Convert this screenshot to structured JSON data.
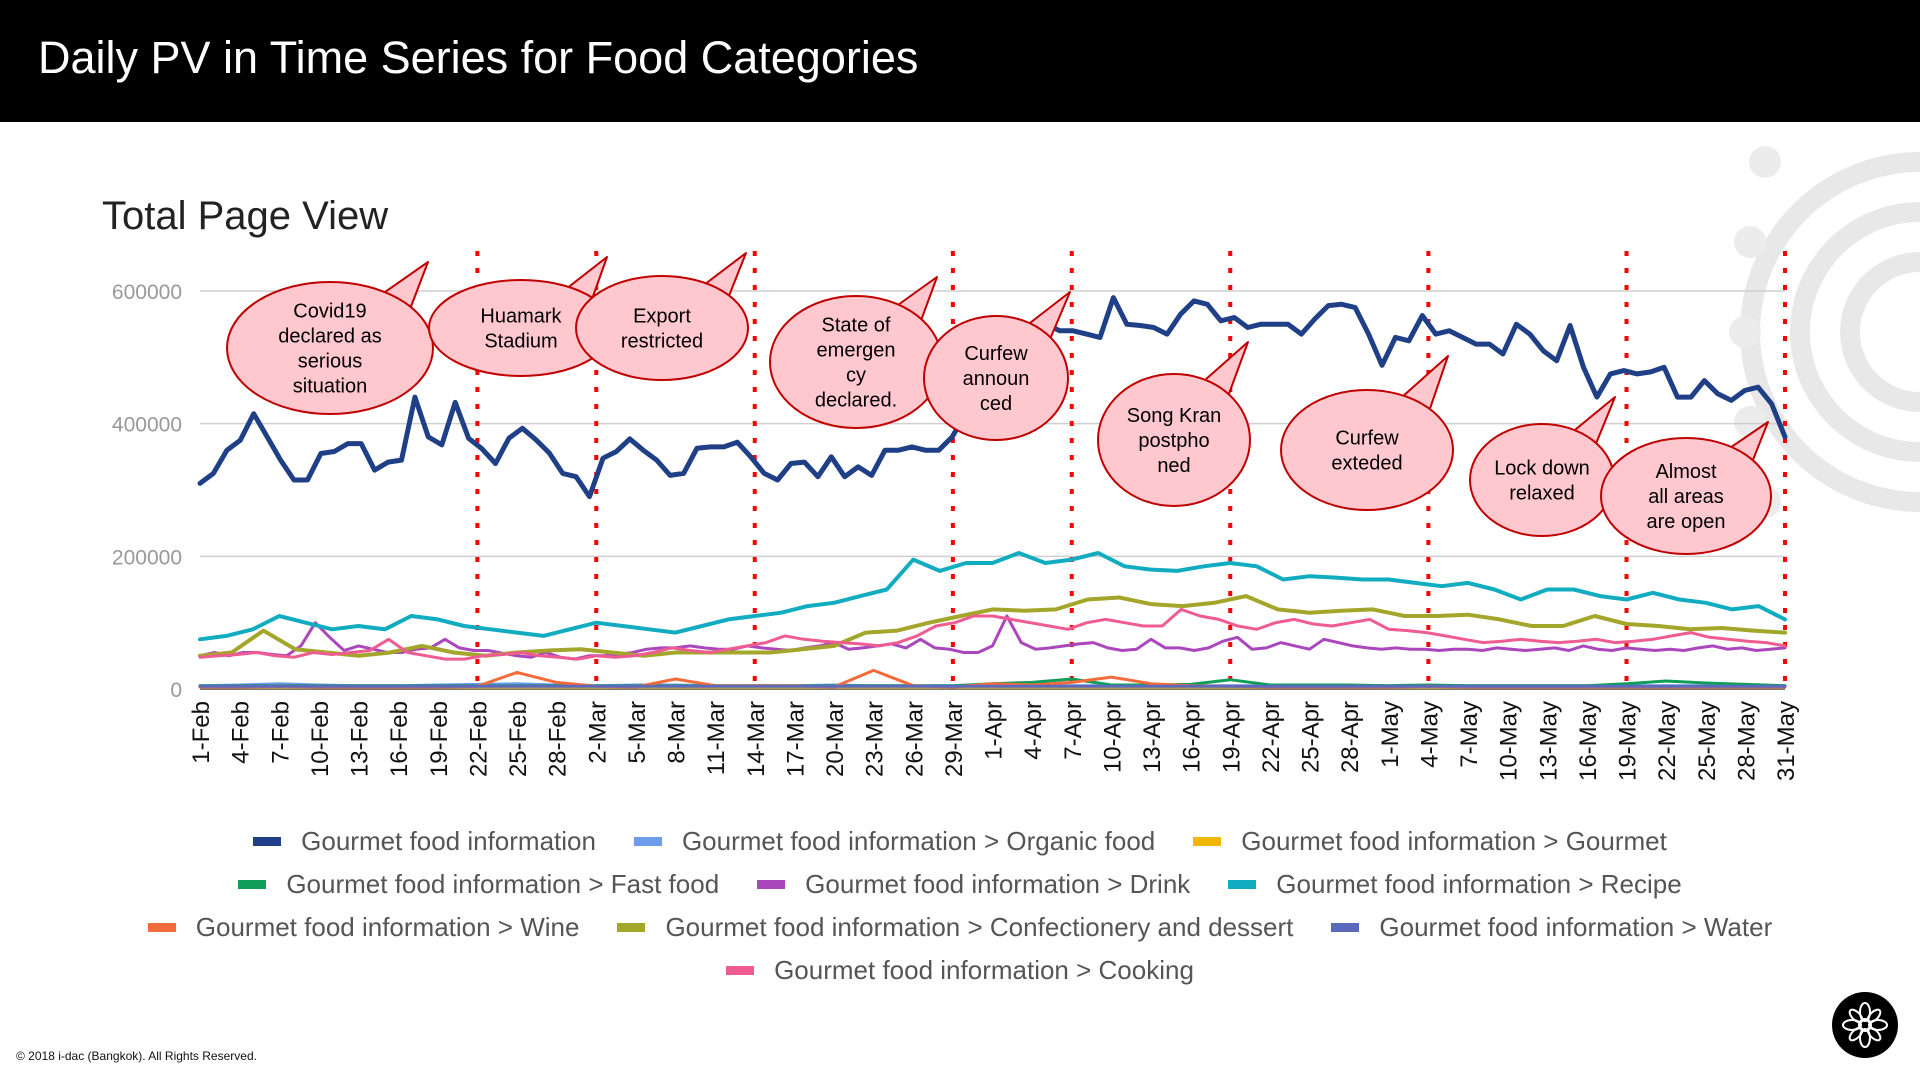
{
  "slide": {
    "title": "Daily PV in Time Series for Food Categories",
    "copyright": "© 2018 i-dac (Bangkok). All Rights Reserved."
  },
  "chart_data": {
    "type": "line",
    "title": "Total Page View",
    "ylim": [
      0,
      600000
    ],
    "yticks": [
      "0",
      "200000",
      "400000",
      "600000"
    ],
    "grid": true,
    "legend_position": "bottom",
    "x_labels": [
      "1-Feb",
      "4-Feb",
      "7-Feb",
      "10-Feb",
      "13-Feb",
      "16-Feb",
      "19-Feb",
      "22-Feb",
      "25-Feb",
      "28-Feb",
      "2-Mar",
      "5-Mar",
      "8-Mar",
      "11-Mar",
      "14-Mar",
      "17-Mar",
      "20-Mar",
      "23-Mar",
      "26-Mar",
      "29-Mar",
      "1-Apr",
      "4-Apr",
      "7-Apr",
      "10-Apr",
      "13-Apr",
      "16-Apr",
      "19-Apr",
      "22-Apr",
      "25-Apr",
      "28-Apr",
      "1-May",
      "4-May",
      "7-May",
      "10-May",
      "13-May",
      "16-May",
      "19-May",
      "22-May",
      "25-May",
      "28-May",
      "31-May"
    ],
    "series": [
      {
        "name": "Gourmet food information",
        "color": "#1F3F86",
        "width": 5,
        "values": [
          310000,
          325000,
          360000,
          375000,
          415000,
          380000,
          345000,
          315000,
          315000,
          355000,
          358000,
          370000,
          370000,
          330000,
          342000,
          345000,
          440000,
          380000,
          368000,
          432000,
          378000,
          362000,
          340000,
          378000,
          393000,
          376000,
          356000,
          325000,
          320000,
          290000,
          348000,
          358000,
          377000,
          360000,
          345000,
          322000,
          325000,
          363000,
          365000,
          365000,
          372000,
          350000,
          325000,
          315000,
          340000,
          342000,
          320000,
          350000,
          320000,
          335000,
          322000,
          360000,
          360000,
          365000,
          360000,
          360000,
          380000,
          415000,
          430000,
          455000,
          475000,
          495000,
          520000,
          550000,
          540000,
          540000,
          535000,
          530000,
          590000,
          550000,
          548000,
          545000,
          535000,
          565000,
          585000,
          580000,
          555000,
          560000,
          545000,
          550000,
          550000,
          550000,
          535000,
          558000,
          578000,
          580000,
          575000,
          535000,
          488000,
          530000,
          525000,
          563000,
          535000,
          540000,
          530000,
          520000,
          520000,
          505000,
          550000,
          535000,
          510000,
          495000,
          548000,
          485000,
          440000,
          475000,
          480000,
          475000,
          478000,
          485000,
          440000,
          440000,
          465000,
          445000,
          435000,
          450000,
          455000,
          430000,
          380000
        ]
      },
      {
        "name": "Gourmet food information > Organic food",
        "color": "#6D9EEB",
        "width": 3,
        "values": [
          5000,
          6000,
          8000,
          6000,
          5000,
          5000,
          6000,
          7000,
          8000,
          6000,
          5000,
          6000,
          6000,
          5000,
          5000,
          5000,
          6000,
          5000,
          5000,
          5000,
          5000,
          5000,
          5000,
          5000,
          5000,
          5000,
          5000,
          5000,
          5000,
          5000,
          5000,
          5000,
          5000,
          5000,
          5000,
          5000,
          5000,
          5000,
          5000,
          5000,
          5000
        ]
      },
      {
        "name": "Gourmet food information > Gourmet",
        "color": "#F1B705",
        "width": 3,
        "values": [
          3000,
          3000,
          3000,
          3000,
          3000,
          3000,
          3000,
          3000,
          3000,
          3000,
          3000,
          3000,
          3000,
          3000,
          3000,
          3000,
          3000,
          3000,
          3000,
          3000,
          3000,
          3000,
          3000,
          3000,
          3000,
          3000,
          3000,
          3000,
          3000,
          3000,
          3000,
          3000,
          3000,
          3000,
          3000,
          3000,
          3000,
          3000,
          3000,
          3000,
          3000
        ]
      },
      {
        "name": "Gourmet food information > Fast food",
        "color": "#0F9D58",
        "width": 3,
        "values": [
          5000,
          5000,
          5000,
          5000,
          5000,
          5000,
          5000,
          5000,
          5000,
          5000,
          5000,
          5000,
          5000,
          5000,
          5000,
          5000,
          5000,
          5000,
          5000,
          5000,
          8000,
          10000,
          15000,
          6000,
          6000,
          7000,
          14000,
          6000,
          6000,
          6000,
          5000,
          6000,
          5000,
          5000,
          5000,
          5000,
          8000,
          12000,
          9000,
          7000,
          5000
        ]
      },
      {
        "name": "Gourmet food information > Drink",
        "color": "#AB47BC",
        "width": 3,
        "values": [
          50000,
          55000,
          50000,
          55000,
          55000,
          52000,
          50000,
          65000,
          100000,
          78000,
          58000,
          65000,
          60000,
          55000,
          55000,
          60000,
          62000,
          75000,
          62000,
          58000,
          58000,
          54000,
          50000,
          48000,
          55000,
          48000,
          45000,
          50000,
          50000,
          52000,
          55000,
          60000,
          62000,
          62000,
          65000,
          62000,
          60000,
          60000,
          65000,
          62000,
          60000,
          58000,
          62000,
          65000,
          70000,
          60000,
          62000,
          65000,
          68000,
          62000,
          75000,
          62000,
          60000,
          55000,
          55000,
          65000,
          110000,
          70000,
          60000,
          62000,
          65000,
          68000,
          70000,
          62000,
          58000,
          60000,
          75000,
          62000,
          62000,
          58000,
          62000,
          72000,
          78000,
          60000,
          62000,
          70000,
          65000,
          60000,
          75000,
          70000,
          65000,
          62000,
          60000,
          62000,
          60000,
          60000,
          58000,
          60000,
          60000,
          58000,
          62000,
          60000,
          58000,
          60000,
          62000,
          58000,
          65000,
          60000,
          58000,
          62000,
          60000,
          58000,
          60000,
          58000,
          62000,
          65000,
          60000,
          62000,
          58000,
          60000,
          62000
        ]
      },
      {
        "name": "Gourmet food information > Recipe",
        "color": "#12ACC1",
        "width": 4,
        "values": [
          75000,
          80000,
          90000,
          110000,
          100000,
          90000,
          95000,
          90000,
          110000,
          105000,
          95000,
          90000,
          85000,
          80000,
          90000,
          100000,
          95000,
          90000,
          85000,
          95000,
          105000,
          110000,
          115000,
          125000,
          130000,
          140000,
          150000,
          195000,
          178000,
          190000,
          190000,
          205000,
          190000,
          195000,
          205000,
          185000,
          180000,
          178000,
          185000,
          190000,
          185000,
          165000,
          170000,
          168000,
          165000,
          165000,
          160000,
          155000,
          160000,
          150000,
          135000,
          150000,
          150000,
          140000,
          135000,
          145000,
          135000,
          130000,
          120000,
          125000,
          105000
        ]
      },
      {
        "name": "Gourmet food information > Wine",
        "color": "#F26B3A",
        "width": 3,
        "values": [
          3000,
          3000,
          4000,
          3000,
          3000,
          3000,
          3000,
          4000,
          25000,
          10000,
          4000,
          3000,
          15000,
          5000,
          5000,
          5000,
          3000,
          28000,
          5000,
          3000,
          8000,
          6000,
          10000,
          18000,
          8000,
          5000,
          4000,
          3000,
          3000,
          3000,
          3000,
          4000,
          3000,
          3000,
          3000,
          3000,
          3000,
          3000,
          3000,
          3000,
          3000
        ]
      },
      {
        "name": "Gourmet food information > Confectionery and dessert",
        "color": "#A4A52B",
        "width": 4,
        "values": [
          50000,
          55000,
          88000,
          60000,
          55000,
          50000,
          55000,
          65000,
          55000,
          50000,
          55000,
          58000,
          60000,
          55000,
          50000,
          55000,
          55000,
          55000,
          55000,
          60000,
          65000,
          85000,
          88000,
          100000,
          110000,
          120000,
          118000,
          120000,
          135000,
          138000,
          128000,
          125000,
          130000,
          140000,
          120000,
          115000,
          118000,
          120000,
          110000,
          110000,
          112000,
          105000,
          95000,
          95000,
          110000,
          98000,
          95000,
          90000,
          92000,
          88000,
          85000
        ]
      },
      {
        "name": "Gourmet food information > Water",
        "color": "#5B6ABF",
        "width": 3,
        "values": [
          4000,
          4000,
          4000,
          4000,
          4000,
          4000,
          4000,
          4000,
          4000,
          4000,
          4000,
          4000,
          4000,
          4000,
          4000,
          4000,
          4000,
          4000,
          4000,
          4000,
          4000,
          4000,
          4000,
          4000,
          4000,
          4000,
          4000,
          4000,
          4000,
          4000,
          4000,
          4000,
          4000,
          4000,
          4000,
          4000,
          4000,
          4000,
          4000,
          4000,
          4000
        ]
      },
      {
        "name": "Gourmet food information > Cooking",
        "color": "#EE5C91",
        "width": 3,
        "values": [
          48000,
          50000,
          52000,
          55000,
          50000,
          48000,
          55000,
          52000,
          55000,
          58000,
          75000,
          55000,
          50000,
          45000,
          45000,
          50000,
          52000,
          55000,
          50000,
          48000,
          45000,
          50000,
          48000,
          50000,
          55000,
          62000,
          58000,
          55000,
          60000,
          65000,
          70000,
          80000,
          75000,
          72000,
          70000,
          68000,
          65000,
          70000,
          80000,
          95000,
          100000,
          110000,
          110000,
          105000,
          100000,
          95000,
          90000,
          100000,
          105000,
          100000,
          95000,
          95000,
          120000,
          110000,
          105000,
          95000,
          90000,
          100000,
          105000,
          98000,
          95000,
          100000,
          105000,
          90000,
          88000,
          85000,
          80000,
          75000,
          70000,
          72000,
          75000,
          72000,
          70000,
          72000,
          75000,
          70000,
          72000,
          75000,
          80000,
          85000,
          78000,
          75000,
          72000,
          70000,
          65000
        ]
      }
    ],
    "events": [
      {
        "label": "Covid19 declared as serious situation",
        "date": "22-Feb"
      },
      {
        "label": "Huamark Stadium",
        "date": "2-Mar"
      },
      {
        "label": "Export restricted",
        "date": "14-Mar"
      },
      {
        "label": "State of emergen cy declared.",
        "date": "29-Mar"
      },
      {
        "label": "Curfew announ ced",
        "date": "7-Apr"
      },
      {
        "label": "Song Kran postpho ned",
        "date": "19-Apr"
      },
      {
        "label": "Curfew exteded",
        "date": "4-May"
      },
      {
        "label": "Lock down relaxed",
        "date": "19-May"
      },
      {
        "label": "Almost all areas are open",
        "date": "31-May"
      }
    ]
  }
}
